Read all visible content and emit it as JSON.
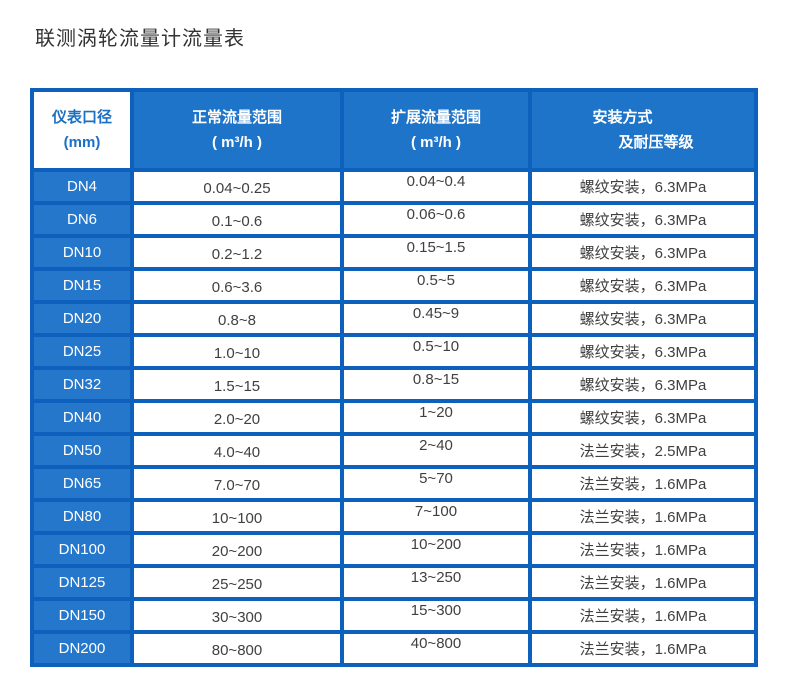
{
  "page": {
    "title": "联测涡轮流量计流量表"
  },
  "colors": {
    "frame_blue": "#0d61bd",
    "header_blue": "#1e74c8",
    "dn_cell_blue": "#2577cb",
    "header_corner_text": "#1b6fc4",
    "body_text": "#404040",
    "title_text": "#333333"
  },
  "table": {
    "header": {
      "col1_line1": "仪表口径",
      "col1_line2": "(mm)",
      "col2_line1": "正常流量范围",
      "col2_line2": "( m³/h )",
      "col3_line1": "扩展流量范围",
      "col3_line2": "( m³/h )",
      "col4_line1": "安装方式",
      "col4_line2": "及耐压等级"
    },
    "rows": [
      {
        "dn": "DN4",
        "normal": "0.04~0.25",
        "extended": "0.04~0.4",
        "install": "螺纹安装，6.3MPa"
      },
      {
        "dn": "DN6",
        "normal": "0.1~0.6",
        "extended": "0.06~0.6",
        "install": "螺纹安装，6.3MPa"
      },
      {
        "dn": "DN10",
        "normal": "0.2~1.2",
        "extended": "0.15~1.5",
        "install": "螺纹安装，6.3MPa"
      },
      {
        "dn": "DN15",
        "normal": "0.6~3.6",
        "extended": "0.5~5",
        "install": "螺纹安装，6.3MPa"
      },
      {
        "dn": "DN20",
        "normal": "0.8~8",
        "extended": "0.45~9",
        "install": "螺纹安装，6.3MPa"
      },
      {
        "dn": "DN25",
        "normal": "1.0~10",
        "extended": "0.5~10",
        "install": "螺纹安装，6.3MPa"
      },
      {
        "dn": "DN32",
        "normal": "1.5~15",
        "extended": "0.8~15",
        "install": "螺纹安装，6.3MPa"
      },
      {
        "dn": "DN40",
        "normal": "2.0~20",
        "extended": "1~20",
        "install": "螺纹安装，6.3MPa"
      },
      {
        "dn": "DN50",
        "normal": "4.0~40",
        "extended": "2~40",
        "install": "法兰安装，2.5MPa"
      },
      {
        "dn": "DN65",
        "normal": "7.0~70",
        "extended": "5~70",
        "install": "法兰安装，1.6MPa"
      },
      {
        "dn": "DN80",
        "normal": "10~100",
        "extended": "7~100",
        "install": "法兰安装，1.6MPa"
      },
      {
        "dn": "DN100",
        "normal": "20~200",
        "extended": "10~200",
        "install": "法兰安装，1.6MPa"
      },
      {
        "dn": "DN125",
        "normal": "25~250",
        "extended": "13~250",
        "install": "法兰安装，1.6MPa"
      },
      {
        "dn": "DN150",
        "normal": "30~300",
        "extended": "15~300",
        "install": "法兰安装，1.6MPa"
      },
      {
        "dn": "DN200",
        "normal": "80~800",
        "extended": "40~800",
        "install": "法兰安装，1.6MPa"
      }
    ]
  }
}
